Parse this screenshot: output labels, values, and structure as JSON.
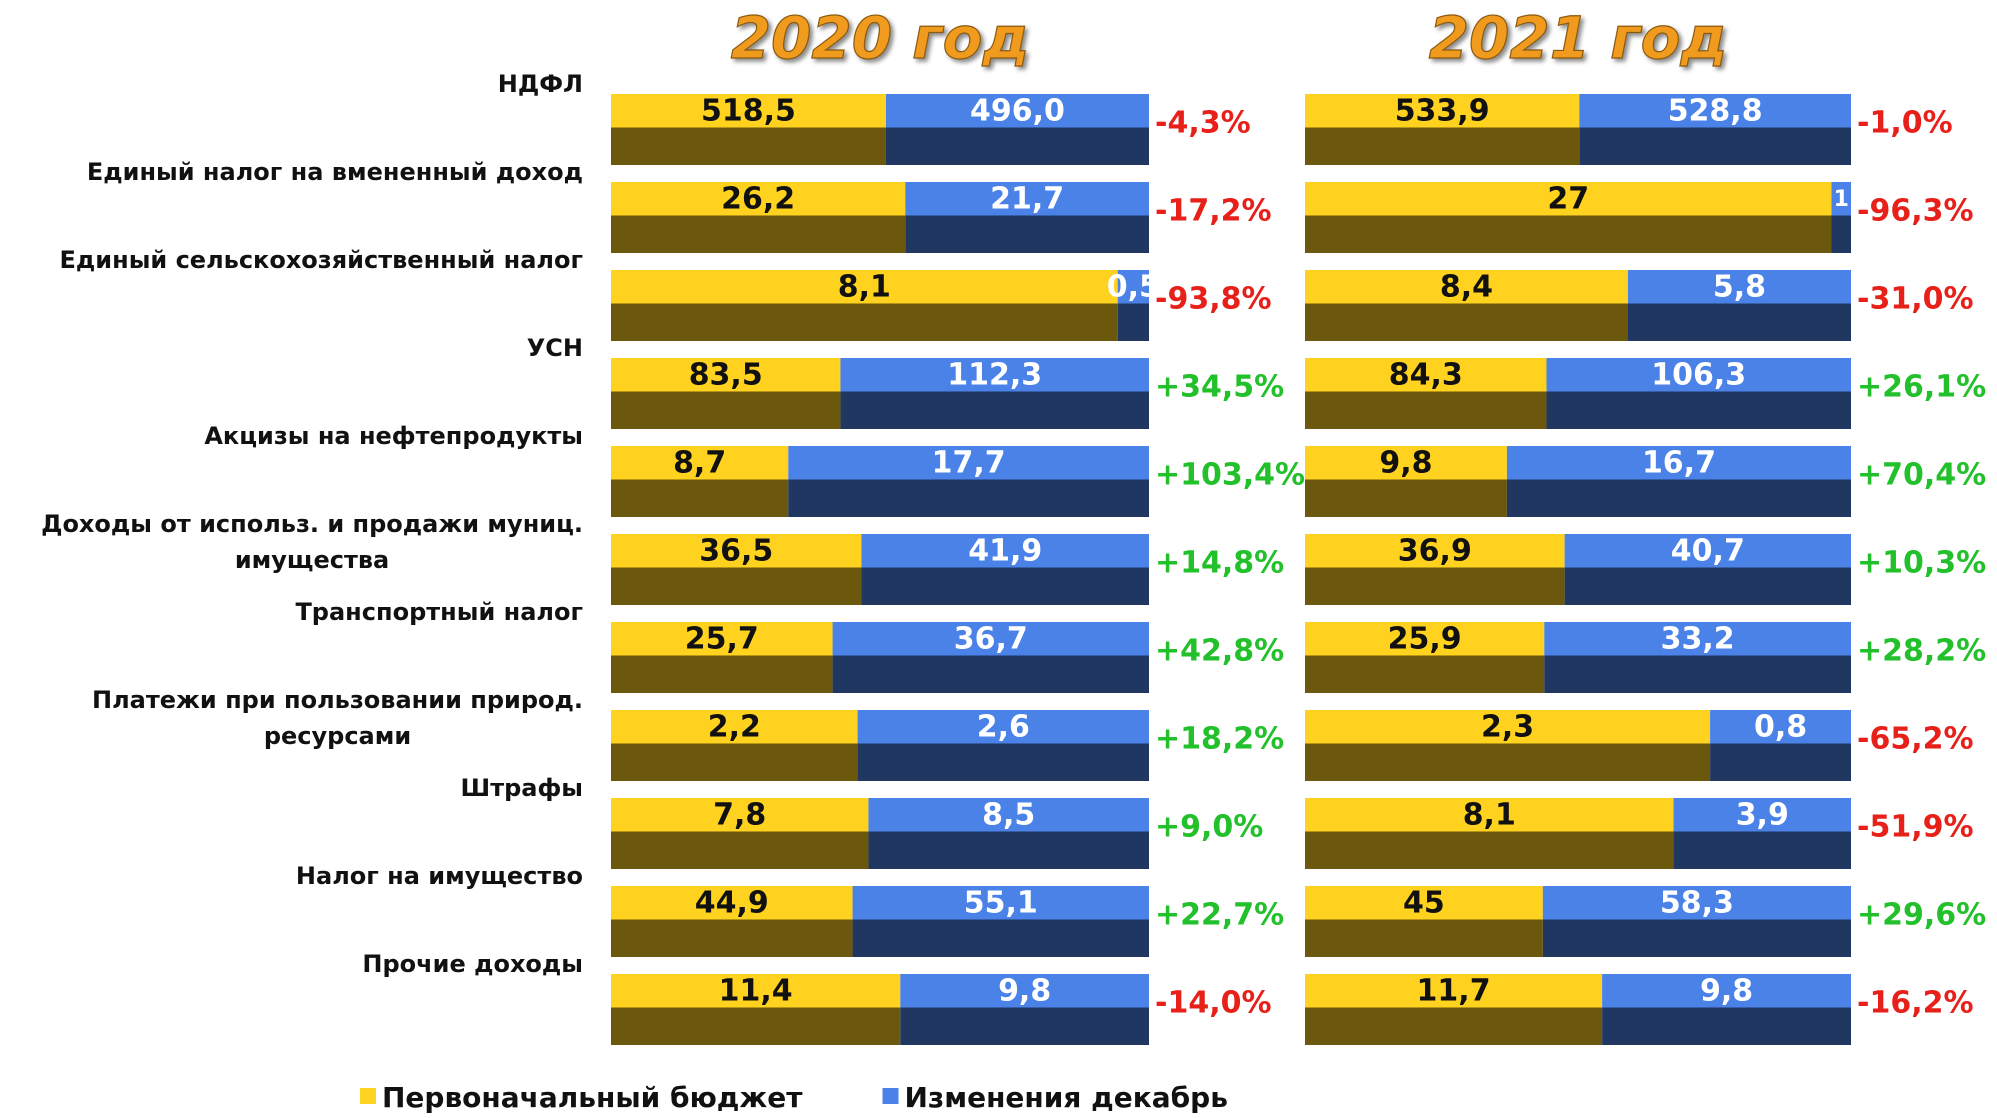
{
  "chart_data": [
    {
      "type": "bar",
      "title": "2020 год",
      "categories": [
        "НДФЛ",
        "Единый налог на вмененный доход",
        "Единый сельскохозяйственный налог",
        "УСН",
        "Акцизы на нефтепродукты",
        "Доходы от использ. и продажи муниц.\nимущества",
        "Транспортный налог",
        "Платежи при пользовании природ.\nресурсами",
        "Штрафы",
        "Налог на имущество",
        "Прочие доходы"
      ],
      "series": [
        {
          "name": "Первоначальный бюджет",
          "color": "#FFD21F",
          "values": [
            518.5,
            26.2,
            8.1,
            83.5,
            8.7,
            36.5,
            25.7,
            2.2,
            7.8,
            44.9,
            11.4
          ],
          "value_labels": [
            "518,5",
            "26,2",
            "8,1",
            "83,5",
            "8,7",
            "36,5",
            "25,7",
            "2,2",
            "7,8",
            "44,9",
            "11,4"
          ]
        },
        {
          "name": "Изменения декабрь",
          "color": "#4B82E8",
          "values": [
            496.0,
            21.7,
            0.5,
            112.3,
            17.7,
            41.9,
            36.7,
            2.6,
            8.5,
            55.1,
            9.8
          ],
          "value_labels": [
            "496,0",
            "21,7",
            "0,5",
            "112,3",
            "17,7",
            "41,9",
            "36,7",
            "2,6",
            "8,5",
            "55,1",
            "9,8"
          ]
        }
      ],
      "changes": {
        "values": [
          -4.3,
          -17.2,
          -93.8,
          34.5,
          103.4,
          14.8,
          42.8,
          18.2,
          9.0,
          22.7,
          -14.0
        ],
        "value_labels": [
          "-4,3%",
          "-17,2%",
          "-93,8%",
          "+34,5%",
          "+103,4%",
          "+14,8%",
          "+42,8%",
          "+18,2%",
          "+9,0%",
          "+22,7%",
          "-14,0%"
        ],
        "negative_color": "#E8201A",
        "positive_color": "#22C02A"
      }
    },
    {
      "type": "bar",
      "title": "2021 год",
      "series": [
        {
          "color": "#FFD21F",
          "values": [
            533.9,
            27,
            8.4,
            84.3,
            9.8,
            36.9,
            25.9,
            2.3,
            8.1,
            45,
            11.7
          ],
          "value_labels": [
            "533,9",
            "27",
            "8,4",
            "84,3",
            "9,8",
            "36,9",
            "25,9",
            "2,3",
            "8,1",
            "45",
            "11,7"
          ]
        },
        {
          "color": "#4B82E8",
          "values": [
            528.8,
            1,
            5.8,
            106.3,
            16.7,
            40.7,
            33.2,
            0.8,
            3.9,
            58.3,
            9.8
          ],
          "value_labels": [
            "528,8",
            "1",
            "5,8",
            "106,3",
            "16,7",
            "40,7",
            "33,2",
            "0,8",
            "3,9",
            "58,3",
            "9,8"
          ]
        }
      ],
      "changes": {
        "values": [
          -1.0,
          -96.3,
          -31.0,
          26.1,
          70.4,
          10.3,
          28.2,
          -65.2,
          -51.9,
          29.6,
          -16.2
        ],
        "value_labels": [
          "-1,0%",
          "-96,3%",
          "-31,0%",
          "+26,1%",
          "+70,4%",
          "+10,3%",
          "+28,2%",
          "-65,2%",
          "-51,9%",
          "+29,6%",
          "-16,2%"
        ],
        "negative_color": "#E8201A",
        "positive_color": "#22C02A"
      }
    }
  ]
}
